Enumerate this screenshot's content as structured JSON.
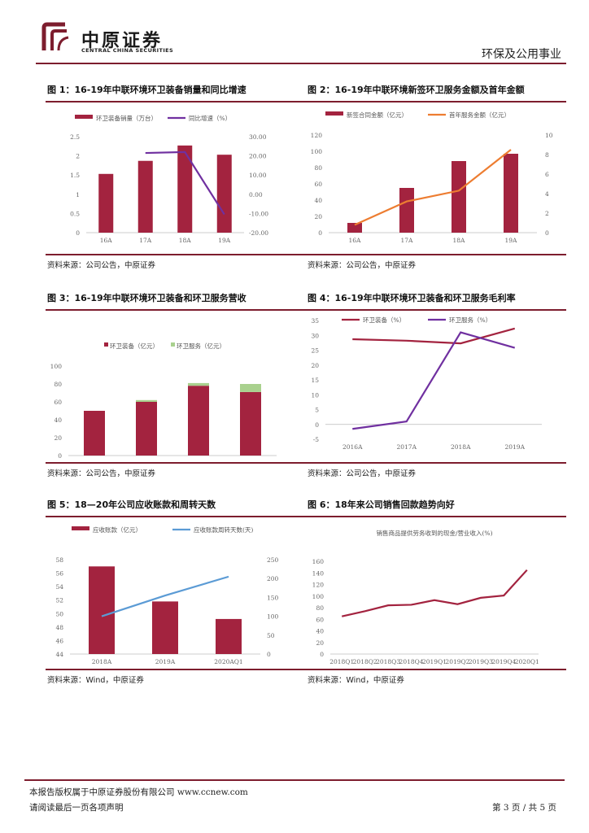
{
  "header": {
    "logo_cn": "中原证券",
    "logo_en": "CENTRAL CHINA SECURITIES",
    "sector": "环保及公用事业"
  },
  "figures": [
    {
      "title": "图 1：16-19年中联环境环卫装备销量和同比增速",
      "source": "资料来源：公司公告，中原证券",
      "chart_data": {
        "type": "bar+line",
        "categories": [
          "16A",
          "17A",
          "18A",
          "19A"
        ],
        "series": [
          {
            "name": "环卫装备销量（万台）",
            "kind": "bar",
            "axis": "left",
            "values": [
              1.53,
              1.87,
              2.27,
              2.03
            ]
          },
          {
            "name": "同比增速（%）",
            "kind": "line",
            "axis": "right",
            "values": [
              null,
              21.5,
              22.0,
              -10.5
            ]
          }
        ],
        "y_left": {
          "min": 0,
          "max": 2.5,
          "ticks": [
            "0",
            "0.5",
            "1",
            "1.5",
            "2",
            "2.5"
          ]
        },
        "y_right": {
          "min": -20,
          "max": 30,
          "ticks": [
            "-20.00",
            "-10.00",
            "0.00",
            "10.00",
            "20.00",
            "30.00"
          ]
        }
      }
    },
    {
      "title": "图 2：16-19年中联环境新签环卫服务金额及首年金额",
      "source": "资料来源：公司公告，中原证券",
      "chart_data": {
        "type": "bar+line",
        "categories": [
          "16A",
          "17A",
          "18A",
          "19A"
        ],
        "series": [
          {
            "name": "新签合同金额（亿元）",
            "kind": "bar",
            "axis": "left",
            "values": [
              12,
              55,
              88,
              97
            ]
          },
          {
            "name": "首年服务金额（亿元）",
            "kind": "line",
            "axis": "right",
            "values": [
              0.8,
              3.2,
              4.3,
              8.5
            ]
          }
        ],
        "y_left": {
          "min": 0,
          "max": 120,
          "ticks": [
            "0",
            "20",
            "40",
            "60",
            "80",
            "100",
            "120"
          ]
        },
        "y_right": {
          "min": 0,
          "max": 10,
          "ticks": [
            "0",
            "2",
            "4",
            "6",
            "8",
            "10"
          ]
        }
      }
    },
    {
      "title": "图 3：16-19年中联环境环卫装备和环卫服务营收",
      "source": "资料来源：公司公告，中原证券",
      "chart_data": {
        "type": "stacked-bar",
        "categories": [
          "2016A",
          "2017A",
          "2018A",
          "2019A"
        ],
        "series": [
          {
            "name": "环卫装备（亿元）",
            "values": [
              50,
              60,
              78,
              71
            ]
          },
          {
            "name": "环卫服务（亿元）",
            "values": [
              0,
              2,
              3,
              9
            ]
          }
        ],
        "y_left": {
          "min": 0,
          "max": 100,
          "ticks": [
            "0",
            "20",
            "40",
            "60",
            "80",
            "100"
          ]
        }
      }
    },
    {
      "title": "图 4：16-19年中联环境环卫装备和环卫服务毛利率",
      "source": "资料来源：公司公告，中原证券",
      "chart_data": {
        "type": "line",
        "categories": [
          "2016A",
          "2017A",
          "2018A",
          "2019A"
        ],
        "series": [
          {
            "name": "环卫装备（%）",
            "values": [
              28.7,
              28.2,
              27.3,
              32.3
            ]
          },
          {
            "name": "环卫服务（%）",
            "values": [
              -1.5,
              1.0,
              31.0,
              25.8
            ]
          }
        ],
        "y_left": {
          "min": -5,
          "max": 35,
          "ticks": [
            "-5",
            "0",
            "5",
            "10",
            "15",
            "20",
            "25",
            "30",
            "35"
          ]
        }
      }
    },
    {
      "title": "图 5：18—20年公司应收账款和周转天数",
      "source": "资料来源：Wind，中原证券",
      "chart_data": {
        "type": "bar+line",
        "categories": [
          "2018A",
          "2019A",
          "2020AQ1"
        ],
        "series": [
          {
            "name": "应收账款（亿元）",
            "kind": "bar",
            "axis": "left",
            "values": [
              57,
              51.8,
              49.2
            ]
          },
          {
            "name": "应收账款周转天数(天)",
            "kind": "line",
            "axis": "right",
            "values": [
              100,
              155,
              205
            ]
          }
        ],
        "y_left": {
          "min": 44,
          "max": 58,
          "ticks": [
            "44",
            "46",
            "48",
            "50",
            "52",
            "54",
            "56",
            "58"
          ]
        },
        "y_right": {
          "min": 0,
          "max": 250,
          "ticks": [
            "0",
            "50",
            "100",
            "150",
            "200",
            "250"
          ]
        }
      }
    },
    {
      "title": "图 6：18年来公司销售回款趋势向好",
      "source": "资料来源：Wind，中原证券",
      "chart_data": {
        "type": "line",
        "title": "销售商品提供劳务收到的现金/营业收入(%)",
        "categories": [
          "2018Q1",
          "2018Q2",
          "2018Q3",
          "2018Q4",
          "2019Q1",
          "2019Q2",
          "2019Q3",
          "2019Q4",
          "2020Q1"
        ],
        "series": [
          {
            "name": "",
            "values": [
              65,
              74,
              84,
              85,
              93,
              86,
              97,
              101,
              145
            ]
          }
        ],
        "y_left": {
          "min": 0,
          "max": 160,
          "ticks": [
            "0",
            "20",
            "40",
            "60",
            "80",
            "100",
            "120",
            "140",
            "160"
          ]
        }
      }
    }
  ],
  "footer": {
    "line1": "本报告版权属于中原证券股份有限公司   www.ccnew.com",
    "line2": "请阅读最后一页各项声明",
    "page": "第 3 页 / 共 5 页"
  },
  "colors": {
    "accent": "#7d1d2e",
    "bar": "#a3233f",
    "line_purple": "#7030a0",
    "line_orange": "#ed7d31",
    "line_blue": "#5b9bd5",
    "bar_green": "#a9d18e"
  }
}
